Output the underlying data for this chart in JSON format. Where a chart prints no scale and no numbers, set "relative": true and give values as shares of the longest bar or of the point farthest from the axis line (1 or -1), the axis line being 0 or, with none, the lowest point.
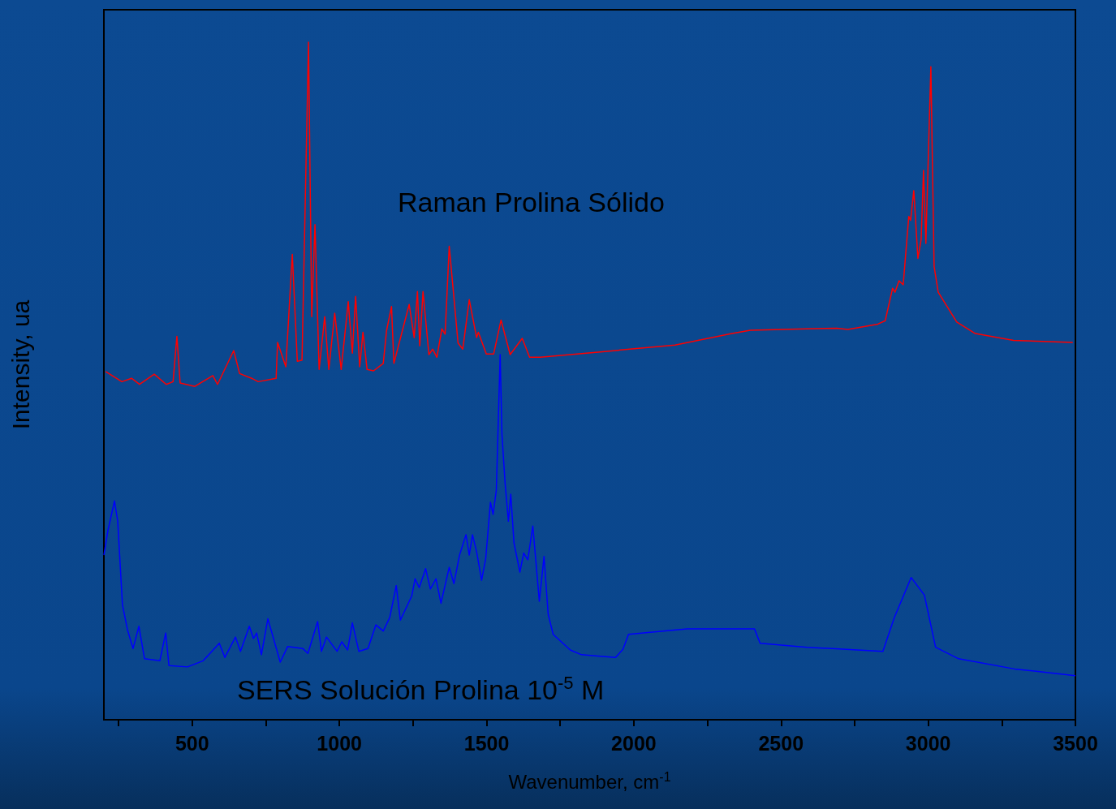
{
  "chart_data": {
    "type": "line",
    "relative": true,
    "xlabel": "Wavenumber, cm$^{-1}$",
    "ylabel": "Intensity, ua",
    "xlim": [
      200,
      3500
    ],
    "xticks": [
      {
        "value": 250,
        "label": null
      },
      500,
      {
        "value": 750,
        "label": null
      },
      1000,
      {
        "value": 1250,
        "label": null
      },
      1500,
      {
        "value": 1750,
        "label": null
      },
      2000,
      {
        "value": 2250,
        "label": null
      },
      2500,
      {
        "value": 2750,
        "label": null
      },
      3000,
      {
        "value": 3250,
        "label": null
      },
      3500
    ],
    "grid": false,
    "legend": false,
    "marker": "none",
    "line_style": "solid",
    "series": [
      {
        "name": "Raman Prolina Sólido",
        "color": "#ff0000",
        "x": [
          206,
          261,
          294,
          321,
          371,
          412,
          435,
          448,
          459,
          509,
          570,
          586,
          641,
          661,
          702,
          724,
          785,
          790,
          818,
          840,
          857,
          873,
          895,
          906,
          917,
          931,
          950,
          964,
          984,
          1006,
          1030,
          1044,
          1055,
          1069,
          1080,
          1094,
          1116,
          1149,
          1160,
          1177,
          1185,
          1237,
          1254,
          1265,
          1273,
          1284,
          1304,
          1317,
          1331,
          1348,
          1359,
          1373,
          1403,
          1419,
          1441,
          1466,
          1472,
          1499,
          1524,
          1549,
          1580,
          1621,
          1646,
          1682,
          1886,
          2140,
          2333,
          2396,
          2587,
          2689,
          2727,
          2829,
          2854,
          2879,
          2887,
          2901,
          2915,
          2934,
          2940,
          2951,
          2965,
          2976,
          2984,
          2992,
          3009,
          3020,
          3034,
          3097,
          3160,
          3290,
          3491
        ],
        "values": [
          0.514,
          0.499,
          0.504,
          0.495,
          0.51,
          0.495,
          0.499,
          0.566,
          0.497,
          0.492,
          0.508,
          0.495,
          0.545,
          0.511,
          0.504,
          0.499,
          0.504,
          0.557,
          0.521,
          0.687,
          0.529,
          0.531,
          1,
          0.595,
          0.731,
          0.517,
          0.595,
          0.517,
          0.6,
          0.517,
          0.617,
          0.541,
          0.625,
          0.521,
          0.572,
          0.517,
          0.515,
          0.526,
          0.574,
          0.61,
          0.526,
          0.613,
          0.564,
          0.632,
          0.552,
          0.632,
          0.539,
          0.547,
          0.535,
          0.577,
          0.569,
          0.699,
          0.556,
          0.547,
          0.62,
          0.564,
          0.572,
          0.54,
          0.54,
          0.59,
          0.539,
          0.563,
          0.535,
          0.535,
          0.543,
          0.553,
          0.57,
          0.575,
          0.577,
          0.578,
          0.576,
          0.584,
          0.589,
          0.637,
          0.631,
          0.648,
          0.642,
          0.743,
          0.737,
          0.781,
          0.681,
          0.709,
          0.811,
          0.703,
          0.964,
          0.669,
          0.631,
          0.587,
          0.57,
          0.56,
          0.557
        ]
      },
      {
        "name": "SERS Solución Prolina 10$^{-5}$ M",
        "color": "#0000ff",
        "x": [
          200,
          214,
          236,
          247,
          263,
          280,
          299,
          319,
          338,
          390,
          410,
          421,
          484,
          537,
          592,
          611,
          647,
          664,
          694,
          708,
          719,
          735,
          757,
          799,
          824,
          876,
          893,
          926,
          939,
          956,
          992,
          1008,
          1028,
          1044,
          1066,
          1097,
          1124,
          1149,
          1171,
          1193,
          1207,
          1246,
          1257,
          1271,
          1293,
          1309,
          1328,
          1345,
          1373,
          1389,
          1408,
          1430,
          1441,
          1452,
          1466,
          1483,
          1497,
          1513,
          1522,
          1533,
          1546,
          1552,
          1563,
          1574,
          1582,
          1593,
          1613,
          1626,
          1640,
          1657,
          1679,
          1695,
          1709,
          1726,
          1784,
          1822,
          1853,
          1938,
          1963,
          1982,
          2181,
          2410,
          2429,
          2589,
          2846,
          2885,
          2942,
          2987,
          3025,
          3103,
          3293,
          3500
        ],
        "values": [
          0.243,
          0.28,
          0.323,
          0.293,
          0.17,
          0.133,
          0.105,
          0.138,
          0.09,
          0.087,
          0.128,
          0.08,
          0.078,
          0.087,
          0.113,
          0.092,
          0.122,
          0.101,
          0.138,
          0.12,
          0.128,
          0.096,
          0.149,
          0.085,
          0.108,
          0.105,
          0.098,
          0.145,
          0.101,
          0.122,
          0.101,
          0.115,
          0.103,
          0.143,
          0.101,
          0.105,
          0.14,
          0.131,
          0.151,
          0.198,
          0.147,
          0.183,
          0.208,
          0.195,
          0.223,
          0.193,
          0.208,
          0.172,
          0.225,
          0.201,
          0.243,
          0.273,
          0.243,
          0.273,
          0.248,
          0.206,
          0.238,
          0.321,
          0.303,
          0.339,
          0.539,
          0.422,
          0.348,
          0.293,
          0.333,
          0.261,
          0.218,
          0.246,
          0.236,
          0.286,
          0.175,
          0.241,
          0.156,
          0.126,
          0.103,
          0.096,
          0.095,
          0.092,
          0.104,
          0.126,
          0.134,
          0.134,
          0.113,
          0.107,
          0.101,
          0.151,
          0.21,
          0.184,
          0.107,
          0.09,
          0.075,
          0.065
        ]
      }
    ]
  }
}
